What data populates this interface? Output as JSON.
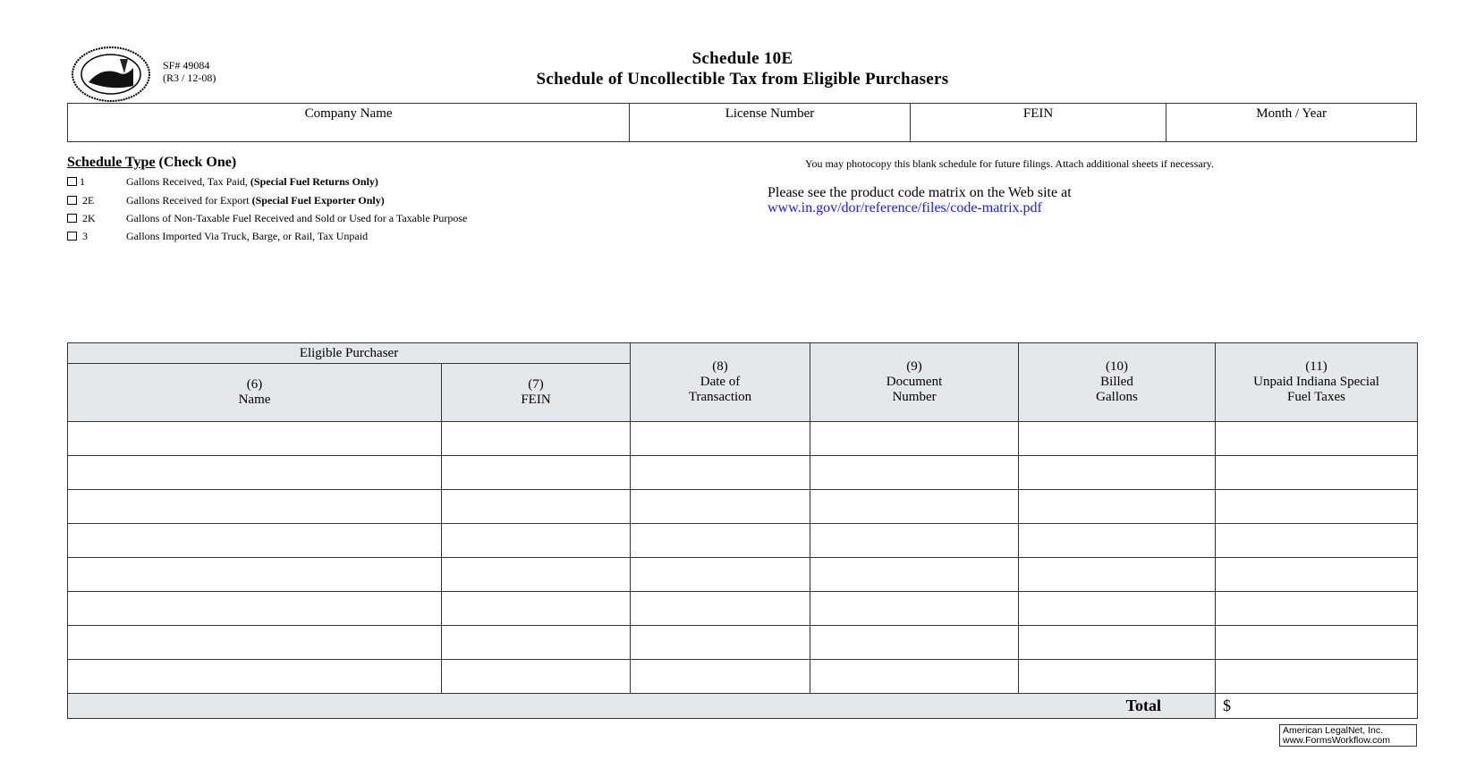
{
  "header": {
    "form_number": "SF# 49084",
    "revision": "(R3 / 12-08)",
    "title": "Schedule 10E",
    "subtitle": "Schedule of Uncollectible Tax from Eligible Purchasers",
    "seal_text": "Seal of the State of Indiana 1816"
  },
  "info_fields": [
    "Company Name",
    "License Number",
    "FEIN",
    "Month / Year"
  ],
  "schedule_type": {
    "heading": "Schedule Type",
    "heading_suffix": "(Check One)",
    "options": [
      {
        "code": "1",
        "label": "Gallons Received, Tax Paid,",
        "bold": "(Special Fuel Returns Only)"
      },
      {
        "code": "2E",
        "label": "Gallons Received for Export",
        "bold": "(Special Fuel Exporter Only)"
      },
      {
        "code": "2K",
        "label": "Gallons of Non-Taxable Fuel Received and Sold or Used for a Taxable Purpose",
        "bold": ""
      },
      {
        "code": "3",
        "label": "Gallons Imported Via Truck, Barge, or Rail, Tax Unpaid",
        "bold": ""
      }
    ]
  },
  "notes": {
    "photocopy": "You may photocopy this blank schedule for future filings.  Attach additional sheets if necessary.",
    "see_matrix": "Please see the product code matrix on the Web site at",
    "link": "www.in.gov/dor/reference/files/code-matrix.pdf"
  },
  "table": {
    "group_header": "Eligible Purchaser",
    "columns": [
      {
        "num": "(6)",
        "label": "Name"
      },
      {
        "num": "(7)",
        "label": "FEIN"
      },
      {
        "num": "(8)",
        "label": "Date of Transaction"
      },
      {
        "num": "(9)",
        "label": "Document Number"
      },
      {
        "num": "(10)",
        "label": "Billed Gallons"
      },
      {
        "num": "(11)",
        "label": "Unpaid Indiana Special Fuel Taxes"
      }
    ],
    "total_label": "Total",
    "total_currency": "$"
  },
  "footer": {
    "line1": "American LegalNet, Inc.",
    "line2": "www.FormsWorkflow.com"
  }
}
